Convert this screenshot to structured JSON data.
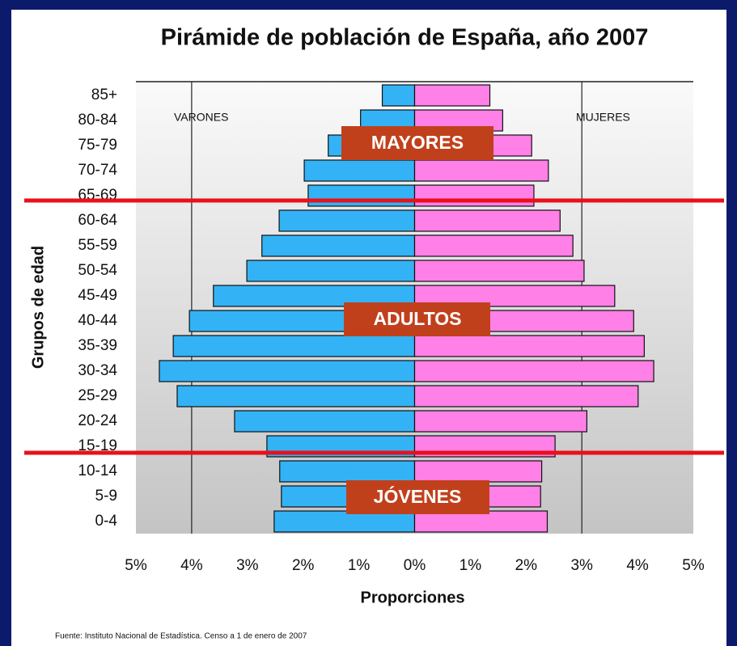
{
  "chart_data": {
    "type": "pyramid",
    "title": "Pirámide de población de España, año 2007",
    "x_label": "Proporciones",
    "y_label": "Grupos de edad",
    "source": "Fuente: Instituto Nacional de Estadística. Censo a 1 de enero de 2007",
    "left_label": "VARONES",
    "right_label": "MUJERES",
    "group_labels": [
      "MAYORES",
      "ADULTOS",
      "JÓVENES"
    ],
    "categories": [
      "85+",
      "80-84",
      "75-79",
      "70-74",
      "65-69",
      "60-64",
      "55-59",
      "50-54",
      "45-49",
      "40-44",
      "35-39",
      "30-34",
      "25-29",
      "20-24",
      "15-19",
      "10-14",
      "5-9",
      "0-4"
    ],
    "series": [
      {
        "name": "Varones",
        "color": "#33b3f5",
        "values": [
          -0.58,
          -0.97,
          -1.55,
          -1.98,
          -1.91,
          -2.43,
          -2.74,
          -3.01,
          -3.61,
          -4.04,
          -4.33,
          -4.58,
          -4.26,
          -3.23,
          -2.65,
          -2.42,
          -2.39,
          -2.52
        ]
      },
      {
        "name": "Mujeres",
        "color": "#ff80e6",
        "values": [
          1.35,
          1.58,
          2.1,
          2.4,
          2.14,
          2.61,
          2.84,
          3.04,
          3.59,
          3.93,
          4.12,
          4.29,
          4.01,
          3.09,
          2.52,
          2.28,
          2.26,
          2.38
        ]
      }
    ],
    "xlim": [
      -5,
      5
    ],
    "xticks": [
      {
        "value": -5,
        "label": "5%"
      },
      {
        "value": -4,
        "label": "4%"
      },
      {
        "value": -3,
        "label": "3%"
      },
      {
        "value": -2,
        "label": "2%"
      },
      {
        "value": -1,
        "label": "1%"
      },
      {
        "value": 0,
        "label": "0%"
      },
      {
        "value": 1,
        "label": "1%"
      },
      {
        "value": 2,
        "label": "2%"
      },
      {
        "value": 3,
        "label": "3%"
      },
      {
        "value": 4,
        "label": "4%"
      },
      {
        "value": 5,
        "label": "5%"
      }
    ],
    "xgrid": [
      -4,
      3
    ]
  }
}
